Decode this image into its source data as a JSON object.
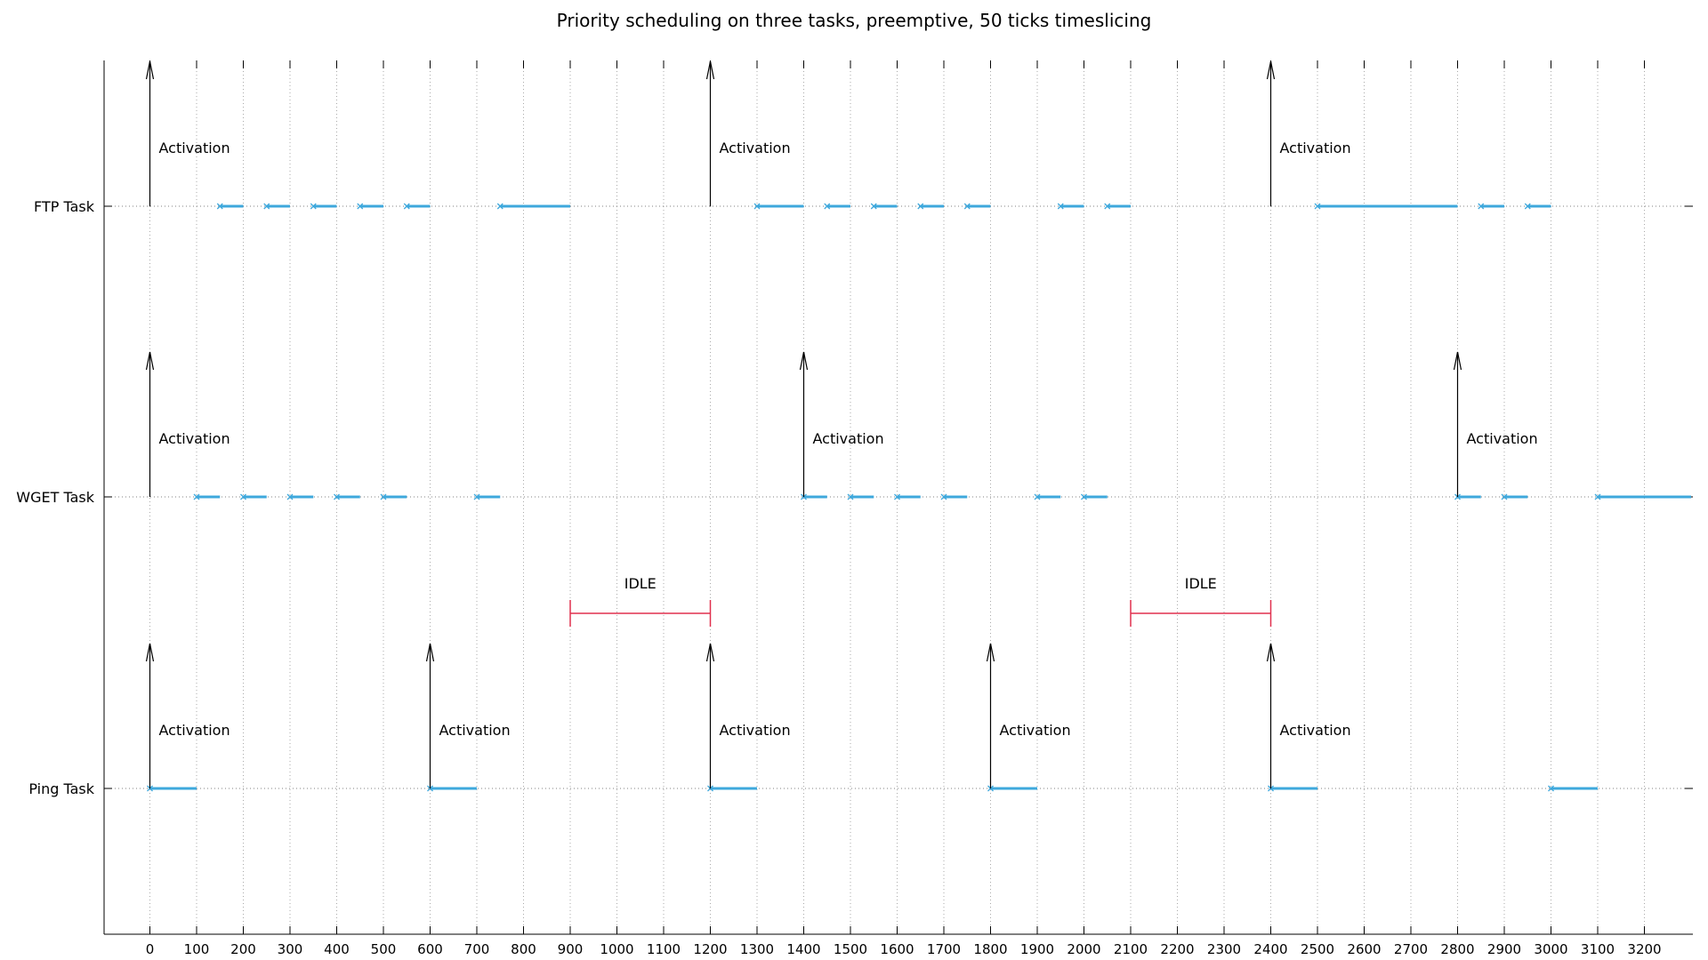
{
  "chart_data": {
    "type": "timeline",
    "title": "Priority scheduling on three tasks, preemptive, 50 ticks timeslicing",
    "xlim": [
      -100,
      3300
    ],
    "x_ticks": [
      0,
      100,
      200,
      300,
      400,
      500,
      600,
      700,
      800,
      900,
      1000,
      1100,
      1200,
      1300,
      1400,
      1500,
      1600,
      1700,
      1800,
      1900,
      2000,
      2100,
      2200,
      2300,
      2400,
      2500,
      2600,
      2700,
      2800,
      2900,
      3000,
      3100,
      3200
    ],
    "grid": "vertical dotted",
    "colors": {
      "execution": "#3ea8dc",
      "idle": "#e0304e",
      "activation": "#000000",
      "lane_baseline": "#808080"
    },
    "activation_label": "Activation",
    "idle_label": "IDLE",
    "lanes": [
      {
        "name": "FTP Task",
        "activations": [
          0,
          1200,
          2400
        ],
        "executions": [
          [
            150,
            200
          ],
          [
            250,
            300
          ],
          [
            350,
            400
          ],
          [
            450,
            500
          ],
          [
            550,
            600
          ],
          [
            750,
            900
          ],
          [
            1300,
            1400
          ],
          [
            1450,
            1500
          ],
          [
            1550,
            1600
          ],
          [
            1650,
            1700
          ],
          [
            1750,
            1800
          ],
          [
            1950,
            2000
          ],
          [
            2050,
            2100
          ],
          [
            2500,
            2800
          ],
          [
            2850,
            2900
          ],
          [
            2950,
            3000
          ]
        ]
      },
      {
        "name": "WGET Task",
        "activations": [
          0,
          1400,
          2800
        ],
        "executions": [
          [
            100,
            150
          ],
          [
            200,
            250
          ],
          [
            300,
            350
          ],
          [
            400,
            450
          ],
          [
            500,
            550
          ],
          [
            700,
            750
          ],
          [
            1400,
            1450
          ],
          [
            1500,
            1550
          ],
          [
            1600,
            1650
          ],
          [
            1700,
            1750
          ],
          [
            1900,
            1950
          ],
          [
            2000,
            2050
          ],
          [
            2800,
            2850
          ],
          [
            2900,
            2950
          ],
          [
            3100,
            3300
          ]
        ]
      },
      {
        "name": "Ping Task",
        "activations": [
          0,
          600,
          1200,
          1800,
          2400
        ],
        "executions": [
          [
            0,
            100
          ],
          [
            600,
            700
          ],
          [
            1200,
            1300
          ],
          [
            1800,
            1900
          ],
          [
            2400,
            2500
          ],
          [
            3000,
            3100
          ]
        ]
      }
    ],
    "idle_periods": [
      [
        900,
        1200
      ],
      [
        2100,
        2400
      ]
    ]
  }
}
